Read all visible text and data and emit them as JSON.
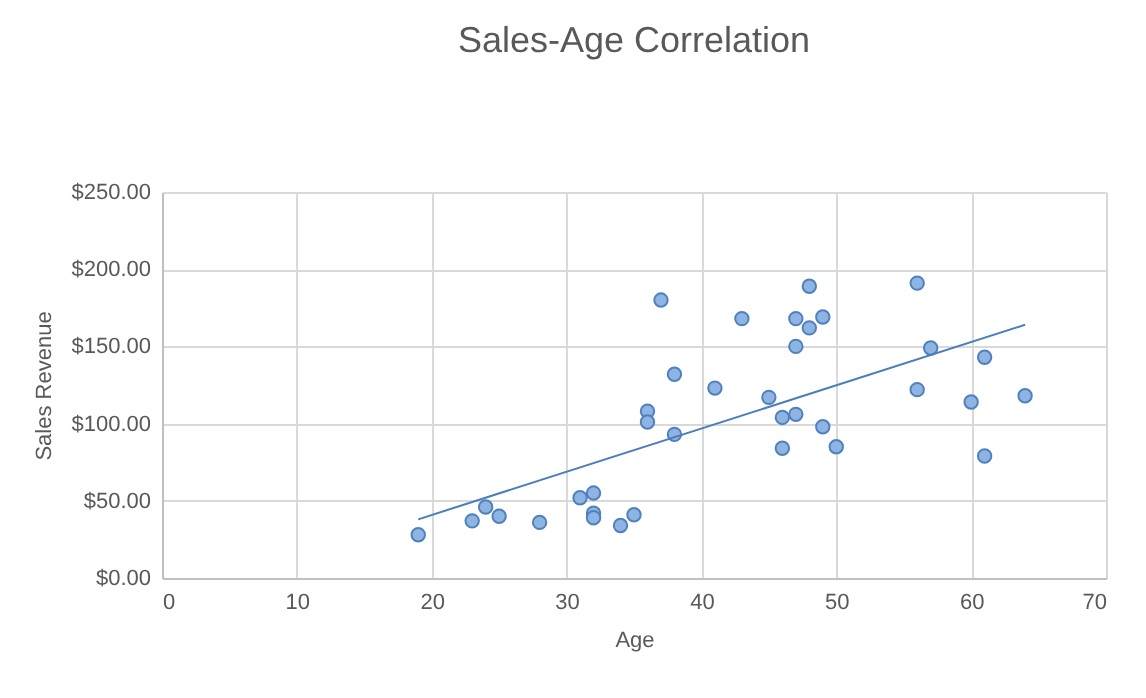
{
  "chart_data": {
    "type": "scatter",
    "title": "Sales-Age Correlation",
    "xlabel": "Age",
    "ylabel": "Sales Revenue",
    "xlim": [
      0,
      70
    ],
    "xticks": [
      0,
      10,
      20,
      30,
      40,
      50,
      60,
      70
    ],
    "ylim": [
      0,
      250
    ],
    "yticks": [
      {
        "value": 0,
        "label": "$0.00"
      },
      {
        "value": 50,
        "label": "$50.00"
      },
      {
        "value": 100,
        "label": "$100.00"
      },
      {
        "value": 150,
        "label": "$150.00"
      },
      {
        "value": 200,
        "label": "$200.00"
      },
      {
        "value": 250,
        "label": "$250.00"
      }
    ],
    "grid": true,
    "marker": "circle",
    "series": [
      {
        "color": "#8eb4e3",
        "x": [
          19,
          23,
          24,
          25,
          28,
          31,
          32,
          32,
          32,
          34,
          35,
          36,
          36,
          37,
          38,
          38,
          41,
          43,
          45,
          46,
          46,
          47,
          47,
          47,
          48,
          48,
          49,
          49,
          50,
          56,
          56,
          57,
          60,
          61,
          61,
          64
        ],
        "values": [
          28,
          37,
          46,
          40,
          36,
          52,
          55,
          42,
          39,
          34,
          41,
          108,
          101,
          180,
          93,
          132,
          123,
          168,
          117,
          104,
          84,
          106,
          150,
          168,
          162,
          189,
          169,
          98,
          85,
          191,
          122,
          149,
          114,
          143,
          79,
          118
        ]
      },
      {
        "type": "line",
        "marker": "none",
        "color": "#4a7ebb",
        "x": [
          19,
          64
        ],
        "values": [
          38,
          164
        ]
      }
    ]
  }
}
